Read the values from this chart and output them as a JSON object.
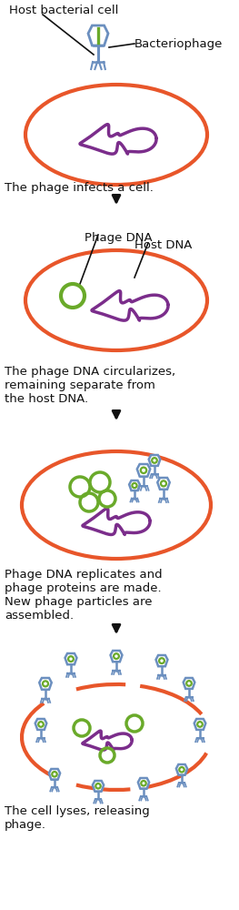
{
  "background_color": "#ffffff",
  "cell_color": "#e8562a",
  "host_dna_color": "#7b2d8b",
  "phage_dna_color": "#6aaa2a",
  "phage_body_color": "#6b8fbf",
  "arrow_color": "#111111",
  "text_color": "#111111",
  "step1_label": "Host bacterial cell",
  "step1_sublabel": "Bacteriophage",
  "step1_caption": "The phage infects a cell.",
  "step2_label1": "Phage DNA",
  "step2_label2": "Host DNA",
  "step2_caption": "The phage DNA circularizes,\nremaining separate from\nthe host DNA.",
  "step3_caption": "Phage DNA replicates and\nphage proteins are made.\nNew phage particles are\nassembled.",
  "step4_caption": "The cell lyses, releasing\nphage.",
  "figsize": [
    2.63,
    10.0
  ],
  "dpi": 100
}
